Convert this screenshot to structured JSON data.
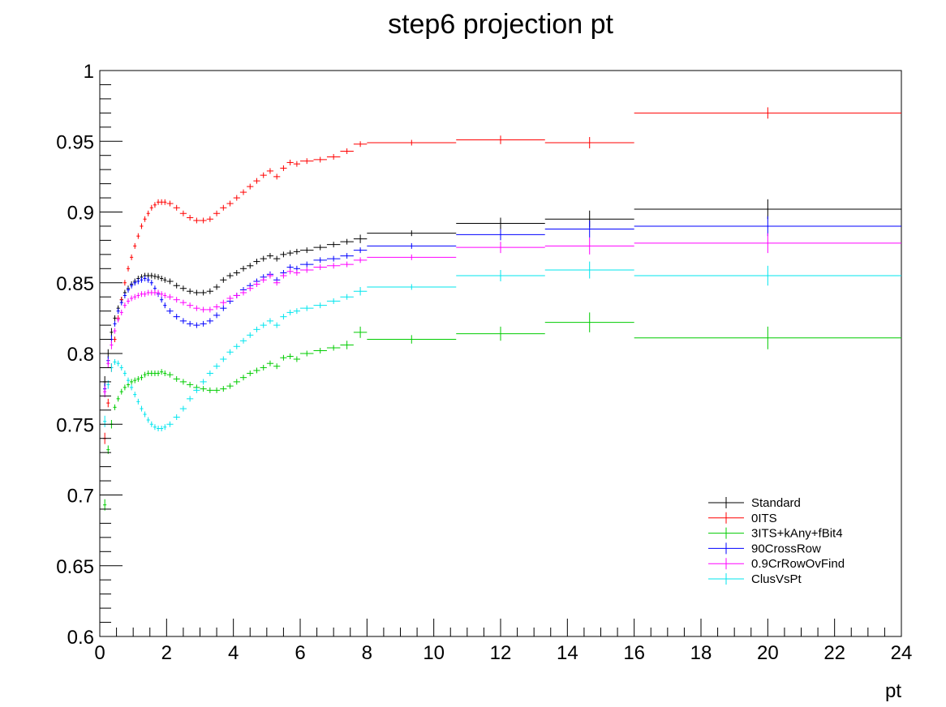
{
  "chart_data": {
    "type": "scatter",
    "title": "step6 projection pt",
    "xlabel": "pt",
    "ylabel": "",
    "xlim": [
      0,
      24
    ],
    "ylim": [
      0.6,
      1.0
    ],
    "x_ticks": [
      "0",
      "2",
      "4",
      "6",
      "8",
      "10",
      "12",
      "14",
      "16",
      "18",
      "20",
      "22",
      "24"
    ],
    "y_ticks": [
      "0.6",
      "0.65",
      "0.7",
      "0.75",
      "0.8",
      "0.85",
      "0.9",
      "0.95",
      "1"
    ],
    "grid": false,
    "legend_position": "bottom-right",
    "bins": [
      0.1,
      0.2,
      0.3,
      0.4,
      0.5,
      0.6,
      0.7,
      0.8,
      0.9,
      1.0,
      1.1,
      1.2,
      1.3,
      1.4,
      1.5,
      1.6,
      1.7,
      1.8,
      1.9,
      2.0,
      2.2,
      2.4,
      2.6,
      2.8,
      3.0,
      3.2,
      3.4,
      3.6,
      3.8,
      4.0,
      4.2,
      4.4,
      4.6,
      4.8,
      5.0,
      5.2,
      5.4,
      5.6,
      5.8,
      6.0,
      6.4,
      6.8,
      7.2,
      7.6,
      8.0,
      10.67,
      13.33,
      16.0,
      24.0
    ],
    "series": [
      {
        "name": "Standard",
        "color": "#000000",
        "values": [
          0.78,
          0.8,
          0.815,
          0.825,
          0.832,
          0.838,
          0.843,
          0.846,
          0.849,
          0.851,
          0.853,
          0.854,
          0.855,
          0.855,
          0.855,
          0.8545,
          0.854,
          0.853,
          0.852,
          0.851,
          0.848,
          0.846,
          0.844,
          0.843,
          0.843,
          0.844,
          0.847,
          0.852,
          0.855,
          0.857,
          0.86,
          0.862,
          0.865,
          0.867,
          0.869,
          0.867,
          0.87,
          0.871,
          0.872,
          0.873,
          0.875,
          0.877,
          0.879,
          0.881,
          0.885,
          0.892,
          0.895,
          0.902
        ],
        "errors": [
          0.004,
          0.003,
          0.003,
          0.002,
          0.002,
          0.002,
          0.002,
          0.002,
          0.002,
          0.002,
          0.002,
          0.002,
          0.002,
          0.002,
          0.002,
          0.002,
          0.002,
          0.002,
          0.002,
          0.002,
          0.002,
          0.002,
          0.002,
          0.002,
          0.002,
          0.002,
          0.002,
          0.002,
          0.002,
          0.002,
          0.002,
          0.002,
          0.002,
          0.002,
          0.002,
          0.002,
          0.002,
          0.002,
          0.002,
          0.002,
          0.002,
          0.002,
          0.002,
          0.003,
          0.002,
          0.004,
          0.006,
          0.007
        ]
      },
      {
        "name": "0ITS",
        "color": "#ff0000",
        "values": [
          0.74,
          0.765,
          0.79,
          0.81,
          0.825,
          0.838,
          0.85,
          0.86,
          0.868,
          0.876,
          0.883,
          0.89,
          0.895,
          0.899,
          0.903,
          0.905,
          0.907,
          0.907,
          0.907,
          0.906,
          0.903,
          0.899,
          0.896,
          0.894,
          0.894,
          0.895,
          0.899,
          0.903,
          0.906,
          0.91,
          0.914,
          0.918,
          0.922,
          0.926,
          0.929,
          0.925,
          0.931,
          0.935,
          0.934,
          0.936,
          0.937,
          0.939,
          0.943,
          0.948,
          0.949,
          0.951,
          0.949,
          0.97
        ],
        "errors": [
          0.004,
          0.003,
          0.003,
          0.002,
          0.002,
          0.002,
          0.002,
          0.002,
          0.002,
          0.002,
          0.002,
          0.002,
          0.002,
          0.002,
          0.002,
          0.002,
          0.002,
          0.002,
          0.002,
          0.002,
          0.002,
          0.002,
          0.002,
          0.002,
          0.002,
          0.002,
          0.002,
          0.002,
          0.002,
          0.002,
          0.002,
          0.002,
          0.002,
          0.002,
          0.002,
          0.002,
          0.002,
          0.002,
          0.002,
          0.002,
          0.002,
          0.002,
          0.002,
          0.002,
          0.002,
          0.003,
          0.004,
          0.004
        ]
      },
      {
        "name": "3ITS+kAny+fBit4",
        "color": "#00cc00",
        "values": [
          0.693,
          0.732,
          0.75,
          0.762,
          0.768,
          0.773,
          0.776,
          0.778,
          0.78,
          0.781,
          0.782,
          0.783,
          0.785,
          0.786,
          0.786,
          0.786,
          0.786,
          0.787,
          0.786,
          0.785,
          0.782,
          0.78,
          0.778,
          0.776,
          0.775,
          0.774,
          0.774,
          0.775,
          0.777,
          0.78,
          0.783,
          0.786,
          0.788,
          0.79,
          0.793,
          0.791,
          0.797,
          0.798,
          0.796,
          0.8,
          0.802,
          0.804,
          0.806,
          0.815,
          0.81,
          0.814,
          0.822,
          0.811
        ],
        "errors": [
          0.004,
          0.003,
          0.003,
          0.002,
          0.002,
          0.002,
          0.002,
          0.002,
          0.002,
          0.002,
          0.002,
          0.002,
          0.002,
          0.002,
          0.002,
          0.002,
          0.002,
          0.002,
          0.002,
          0.002,
          0.002,
          0.002,
          0.002,
          0.002,
          0.002,
          0.002,
          0.002,
          0.002,
          0.002,
          0.002,
          0.002,
          0.002,
          0.002,
          0.002,
          0.002,
          0.002,
          0.002,
          0.002,
          0.002,
          0.002,
          0.002,
          0.002,
          0.003,
          0.004,
          0.003,
          0.005,
          0.007,
          0.008
        ]
      },
      {
        "name": "90CrossRow",
        "color": "#0000ff",
        "values": [
          0.775,
          0.795,
          0.81,
          0.821,
          0.83,
          0.836,
          0.841,
          0.845,
          0.848,
          0.85,
          0.851,
          0.852,
          0.853,
          0.852,
          0.85,
          0.846,
          0.842,
          0.838,
          0.834,
          0.83,
          0.826,
          0.823,
          0.821,
          0.82,
          0.821,
          0.823,
          0.827,
          0.832,
          0.837,
          0.841,
          0.845,
          0.848,
          0.851,
          0.854,
          0.856,
          0.852,
          0.857,
          0.861,
          0.86,
          0.863,
          0.866,
          0.867,
          0.869,
          0.873,
          0.876,
          0.884,
          0.888,
          0.89
        ],
        "errors": [
          0.004,
          0.003,
          0.003,
          0.002,
          0.002,
          0.002,
          0.002,
          0.002,
          0.002,
          0.002,
          0.002,
          0.002,
          0.002,
          0.002,
          0.002,
          0.002,
          0.002,
          0.002,
          0.002,
          0.002,
          0.002,
          0.002,
          0.002,
          0.002,
          0.002,
          0.002,
          0.002,
          0.002,
          0.002,
          0.002,
          0.002,
          0.002,
          0.002,
          0.002,
          0.002,
          0.002,
          0.002,
          0.002,
          0.002,
          0.002,
          0.002,
          0.002,
          0.002,
          0.002,
          0.002,
          0.004,
          0.006,
          0.007
        ]
      },
      {
        "name": "0.9CrRowOvFind",
        "color": "#ff00ff",
        "values": [
          0.773,
          0.793,
          0.806,
          0.816,
          0.824,
          0.829,
          0.834,
          0.837,
          0.839,
          0.84,
          0.841,
          0.842,
          0.842,
          0.843,
          0.843,
          0.843,
          0.843,
          0.842,
          0.841,
          0.84,
          0.838,
          0.836,
          0.834,
          0.832,
          0.831,
          0.831,
          0.833,
          0.836,
          0.839,
          0.841,
          0.843,
          0.846,
          0.849,
          0.852,
          0.855,
          0.85,
          0.855,
          0.858,
          0.857,
          0.859,
          0.861,
          0.862,
          0.863,
          0.866,
          0.868,
          0.875,
          0.876,
          0.878
        ],
        "errors": [
          0.004,
          0.003,
          0.003,
          0.002,
          0.002,
          0.002,
          0.002,
          0.002,
          0.002,
          0.002,
          0.002,
          0.002,
          0.002,
          0.002,
          0.002,
          0.002,
          0.002,
          0.002,
          0.002,
          0.002,
          0.002,
          0.002,
          0.002,
          0.002,
          0.002,
          0.002,
          0.002,
          0.002,
          0.002,
          0.002,
          0.002,
          0.002,
          0.002,
          0.002,
          0.002,
          0.002,
          0.002,
          0.002,
          0.002,
          0.002,
          0.002,
          0.002,
          0.002,
          0.002,
          0.002,
          0.004,
          0.006,
          0.007
        ]
      },
      {
        "name": "ClusVsPt",
        "color": "#00e5ee",
        "values": [
          0.752,
          0.778,
          0.79,
          0.794,
          0.793,
          0.79,
          0.786,
          0.781,
          0.776,
          0.771,
          0.766,
          0.761,
          0.757,
          0.753,
          0.75,
          0.748,
          0.747,
          0.747,
          0.748,
          0.75,
          0.755,
          0.761,
          0.768,
          0.774,
          0.78,
          0.786,
          0.791,
          0.796,
          0.801,
          0.805,
          0.809,
          0.813,
          0.817,
          0.82,
          0.823,
          0.82,
          0.826,
          0.829,
          0.83,
          0.832,
          0.834,
          0.837,
          0.84,
          0.844,
          0.847,
          0.855,
          0.859,
          0.855
        ],
        "errors": [
          0.004,
          0.003,
          0.003,
          0.002,
          0.002,
          0.002,
          0.002,
          0.002,
          0.002,
          0.002,
          0.002,
          0.002,
          0.002,
          0.002,
          0.002,
          0.002,
          0.002,
          0.002,
          0.002,
          0.002,
          0.002,
          0.002,
          0.002,
          0.002,
          0.002,
          0.002,
          0.002,
          0.002,
          0.002,
          0.002,
          0.002,
          0.002,
          0.002,
          0.002,
          0.002,
          0.002,
          0.002,
          0.002,
          0.002,
          0.002,
          0.002,
          0.002,
          0.002,
          0.003,
          0.002,
          0.004,
          0.006,
          0.007
        ]
      }
    ]
  }
}
